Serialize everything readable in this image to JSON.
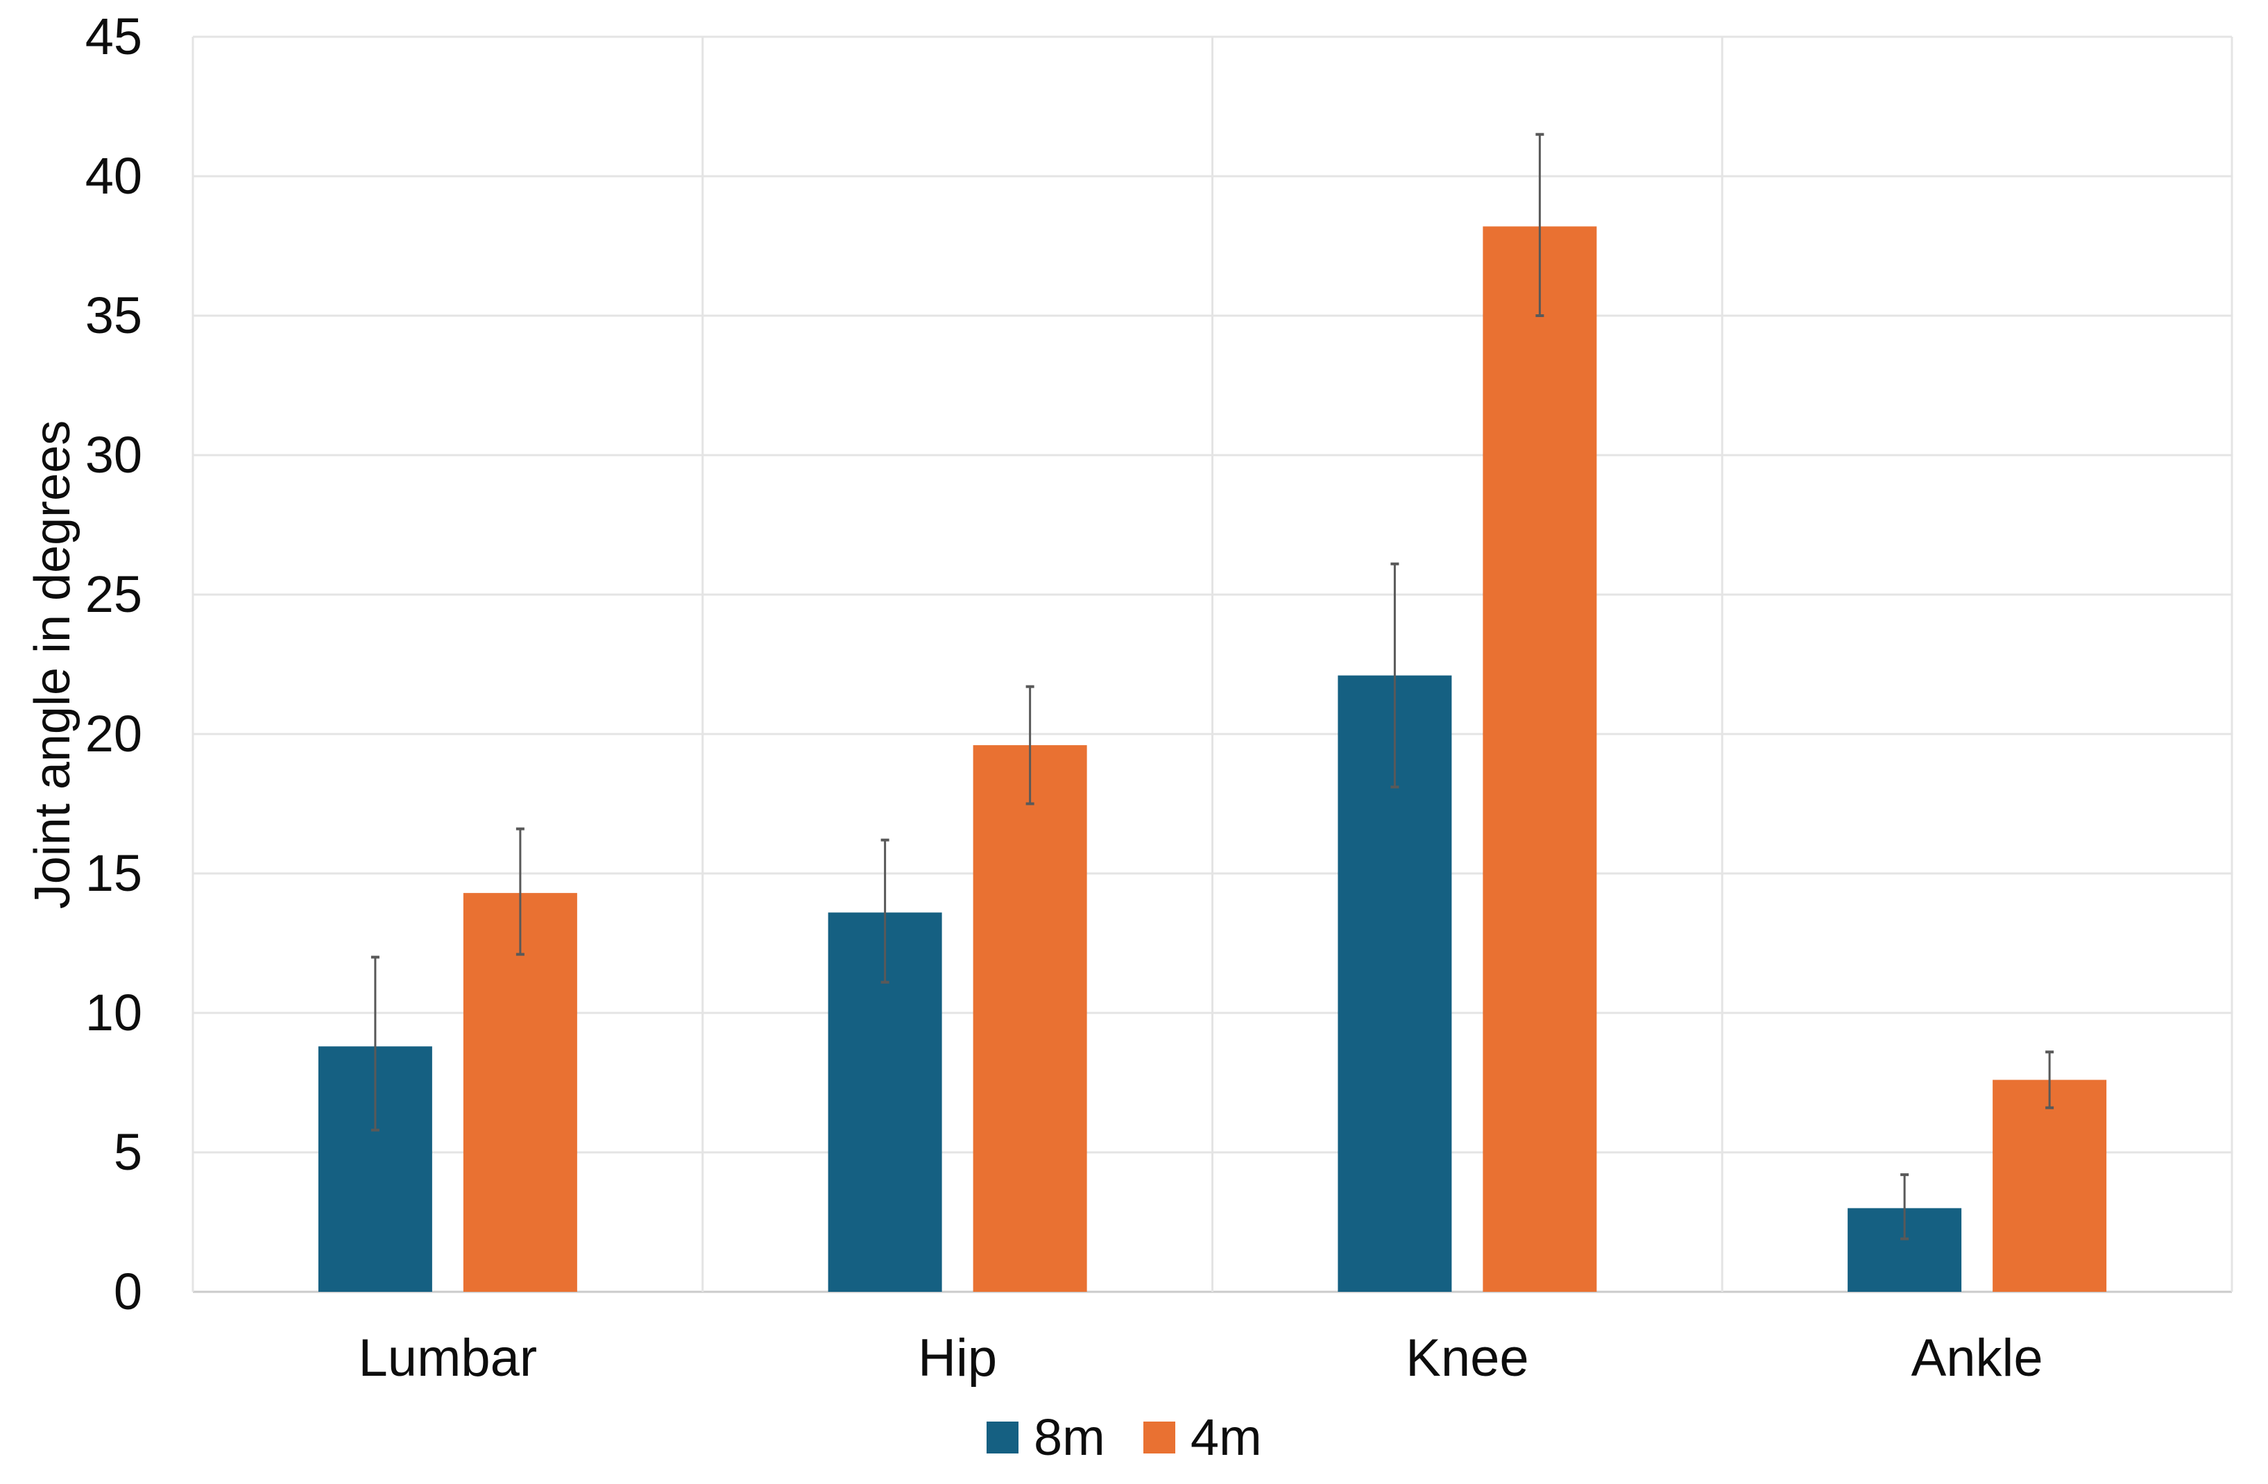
{
  "chart_data": {
    "type": "bar",
    "title": "",
    "categories": [
      "Lumbar",
      "Hip",
      "Knee",
      "Ankle"
    ],
    "series": [
      {
        "name": "8m",
        "color": "#156082",
        "values": [
          8.8,
          13.6,
          22.1,
          3.0
        ],
        "error_low": [
          5.8,
          11.1,
          18.1,
          1.9
        ],
        "error_high": [
          12.0,
          16.2,
          26.1,
          4.2
        ]
      },
      {
        "name": "4m",
        "color": "#E97132",
        "values": [
          14.3,
          19.6,
          38.2,
          7.6
        ],
        "error_low": [
          12.1,
          17.5,
          35.0,
          6.6
        ],
        "error_high": [
          16.6,
          21.7,
          41.5,
          8.6
        ]
      }
    ],
    "xlabel": "",
    "ylabel": "Joint angle in degrees",
    "ylim": [
      0,
      45
    ],
    "ytick_step": 5,
    "yticks": [
      0,
      5,
      10,
      15,
      20,
      25,
      30,
      35,
      40,
      45
    ],
    "grid": true,
    "vertical_gridlines": true,
    "legend_position": "bottom",
    "gridline_color": "#E4E4E4",
    "axis_line_color": "#CBCBCB",
    "error_bar_color": "#595959",
    "text_color": "#0D0D0D",
    "background_color": "#FFFFFF"
  }
}
